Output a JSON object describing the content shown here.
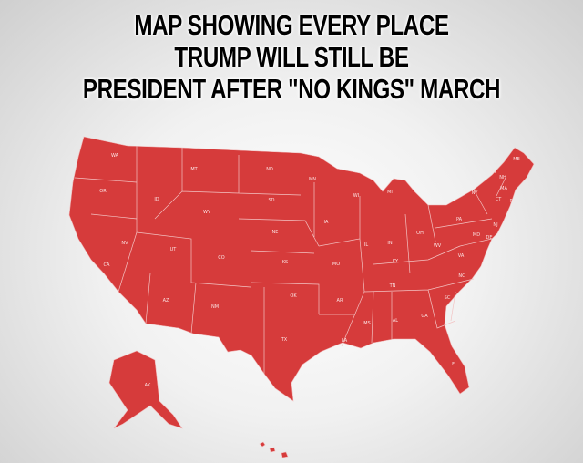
{
  "title": {
    "lines": [
      "MAP SHOWING EVERY PLACE",
      "TRUMP WILL STILL BE",
      "PRESIDENT AFTER \"NO KINGS\" MARCH"
    ]
  },
  "map": {
    "fill_color": "#d63b3b",
    "border_color": "#f4c9c9",
    "states": {
      "WA": "WA",
      "OR": "OR",
      "CA": "CA",
      "NV": "NV",
      "ID": "ID",
      "MT": "MT",
      "WY": "WY",
      "UT": "UT",
      "AZ": "AZ",
      "CO": "CO",
      "NM": "NM",
      "ND": "ND",
      "SD": "SD",
      "NE": "NE",
      "KS": "KS",
      "OK": "OK",
      "TX": "TX",
      "MN": "MN",
      "IA": "IA",
      "MO": "MO",
      "AR": "AR",
      "LA": "LA",
      "WI": "WI",
      "IL": "IL",
      "MI": "MI",
      "IN": "IN",
      "OH": "OH",
      "KY": "KY",
      "TN": "TN",
      "MS": "MS",
      "AL": "AL",
      "GA": "GA",
      "FL": "FL",
      "SC": "SC",
      "NC": "NC",
      "VA": "VA",
      "WV": "WV",
      "PA": "PA",
      "NY": "NY",
      "ME": "ME",
      "VT": "VT",
      "NH": "NH",
      "MA": "MA",
      "CT": "CT",
      "RI": "RI",
      "NJ": "NJ",
      "DE": "DE",
      "MD": "MD",
      "AK": "AK"
    }
  }
}
